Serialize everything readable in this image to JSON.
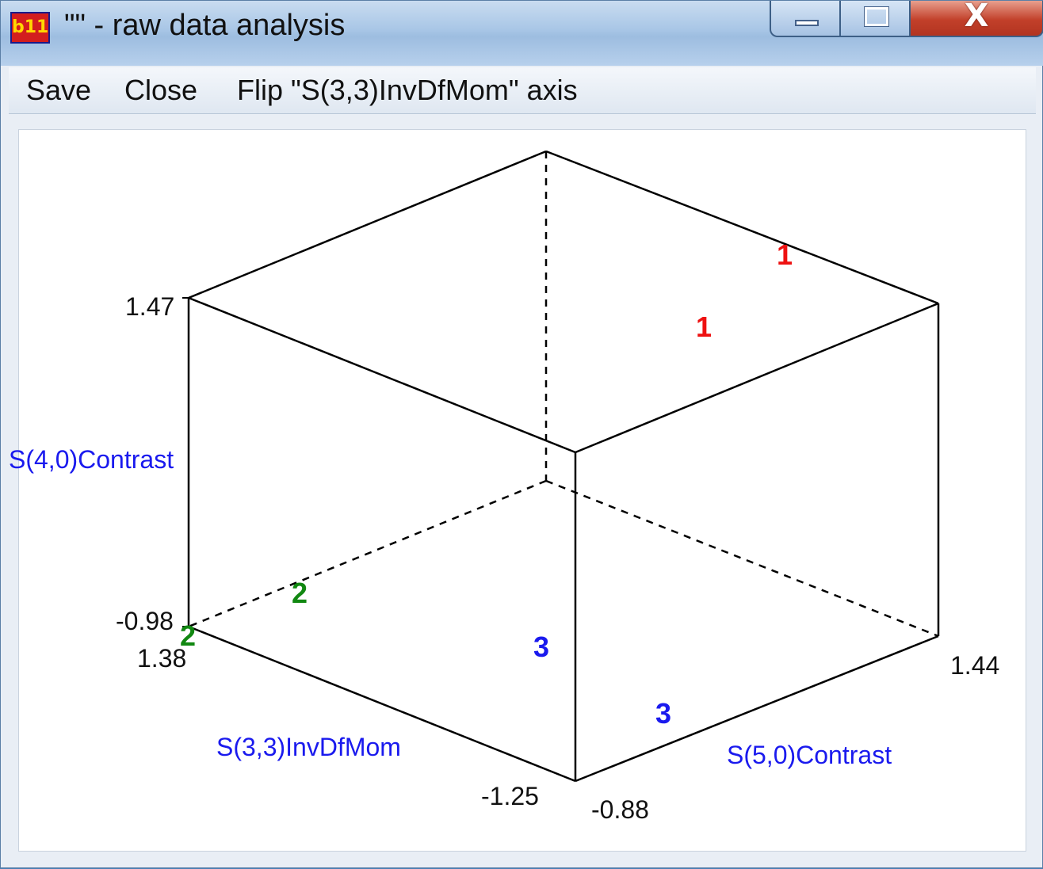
{
  "window": {
    "title": "\"\" - raw data analysis",
    "app_icon_text": "b11",
    "controls": {
      "minimize_icon": "minimize-icon",
      "maximize_icon": "maximize-icon",
      "close_icon": "close-icon",
      "close_glyph": "X"
    }
  },
  "menu": {
    "items": [
      {
        "label": "Save"
      },
      {
        "label": "Close"
      },
      {
        "label": "Flip \"S(3,3)InvDfMom\" axis"
      }
    ]
  },
  "plot": {
    "axis_labels": {
      "vertical": "S(4,0)Contrast",
      "left_depth": "S(3,3)InvDfMom",
      "right_depth": "S(5,0)Contrast"
    },
    "tick_labels": {
      "vertical_max": "1.47",
      "vertical_min": "-0.98",
      "left_depth_max": "1.38",
      "left_depth_min": "-1.25",
      "right_depth_min": "-0.88",
      "right_depth_max": "1.44"
    },
    "points": [
      {
        "label": "1",
        "color": "#ee1111"
      },
      {
        "label": "1",
        "color": "#ee1111"
      },
      {
        "label": "2",
        "color": "#118811"
      },
      {
        "label": "2",
        "color": "#118811"
      },
      {
        "label": "3",
        "color": "#1a1aee"
      },
      {
        "label": "3",
        "color": "#1a1aee"
      }
    ]
  }
}
